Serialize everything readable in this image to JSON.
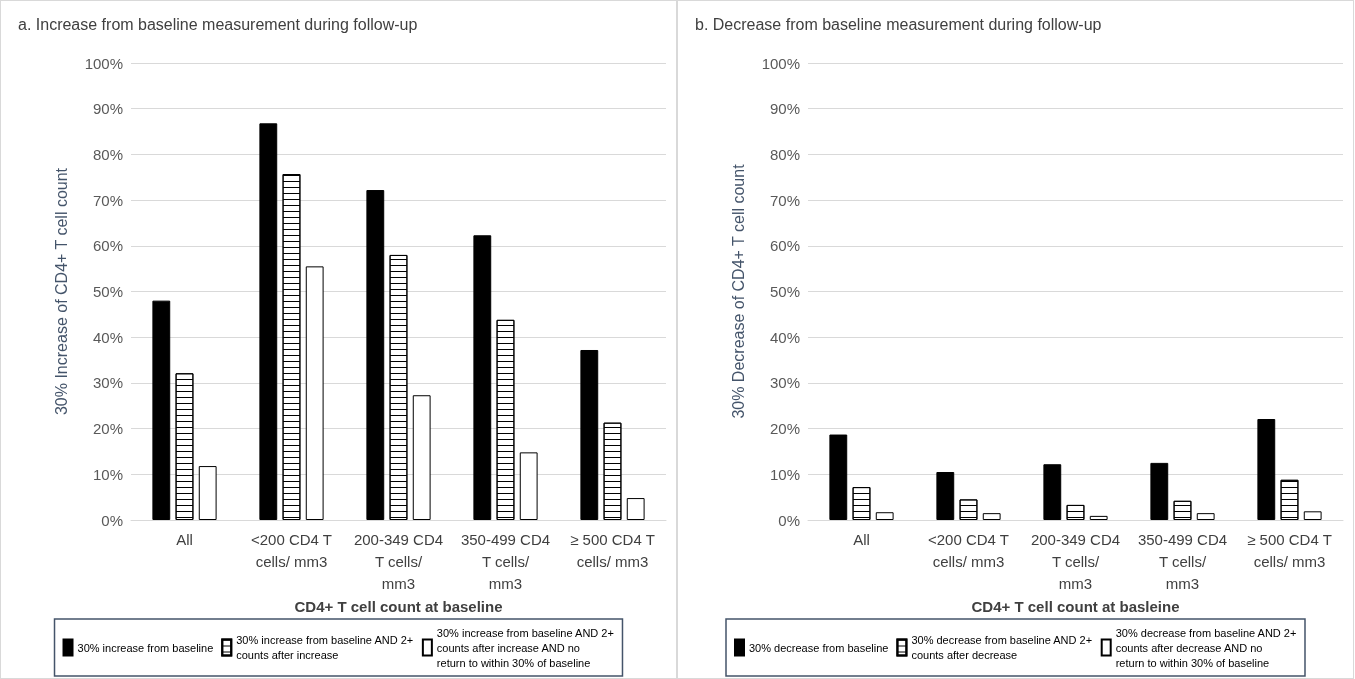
{
  "chart_data": [
    {
      "type": "bar",
      "title": "a. Increase from baseline measurement during follow-up",
      "xlabel": "CD4+ T cell count at baseline",
      "ylabel": "30% Increase of CD4+ T cell count",
      "categories": [
        "All",
        "<200 CD4 T cells/ mm3",
        "200-349 CD4 T cells/ mm3",
        "350-499 CD4 T cells/ mm3",
        "≥ 500 CD4 T cells/ mm3"
      ],
      "series": [
        {
          "name": "30% increase from baseline",
          "color": "#000000",
          "values": [
            48,
            86.8,
            72.2,
            62.3,
            37.2
          ]
        },
        {
          "name": "30% increase from baseline AND 2+ counts after increase",
          "color": "#ffffff",
          "values": [
            32.1,
            75.7,
            58,
            43.8,
            21.3
          ]
        },
        {
          "name": "30% increase from baseline AND 2+ counts after increase AND no return to within 30% of baseline",
          "color": "#ffffff",
          "values": [
            11.8,
            55.5,
            27.3,
            14.8,
            4.8
          ]
        }
      ],
      "ylim": [
        0,
        100
      ],
      "yticks": [
        {
          "value": 0,
          "label": "0%"
        },
        {
          "value": 10,
          "label": "10%"
        },
        {
          "value": 20,
          "label": "20%"
        },
        {
          "value": 30,
          "label": "30%"
        },
        {
          "value": 40,
          "label": "40%"
        },
        {
          "value": 50,
          "label": "50%"
        },
        {
          "value": 60,
          "label": "60%"
        },
        {
          "value": 70,
          "label": "70%"
        },
        {
          "value": 80,
          "label": "80%"
        },
        {
          "value": 90,
          "label": "90%"
        },
        {
          "value": 100,
          "label": "100%"
        }
      ],
      "grid": "y",
      "legend": "bottom"
    },
    {
      "type": "bar",
      "title": "b. Decrease from baseline measurement during follow-up",
      "xlabel": "CD4+ T cell count at basleine",
      "ylabel": "30% Decrease of CD4+ T cell count",
      "categories": [
        "All",
        "<200 CD4 T cells/ mm3",
        "200-349 CD4 T cells/ mm3",
        "350-499 CD4 T cells/ mm3",
        "≥ 500 CD4 T cells/ mm3"
      ],
      "series": [
        {
          "name": "30% decrease from baseline",
          "color": "#000000",
          "values": [
            18.7,
            10.5,
            12.2,
            12.5,
            22.1
          ]
        },
        {
          "name": "30% decrease from baseline AND 2+ counts after decrease",
          "color": "#ffffff",
          "values": [
            7.2,
            4.5,
            3.3,
            4.2,
            8.8
          ]
        },
        {
          "name": "30% decrease from baseline AND 2+ counts after decrease AND no return to within 30% of baseline",
          "color": "#ffffff",
          "values": [
            1.7,
            1.5,
            0.9,
            1.5,
            1.9
          ]
        }
      ],
      "ylim": [
        0,
        100
      ],
      "yticks": [
        {
          "value": 0,
          "label": "0%"
        },
        {
          "value": 10,
          "label": "10%"
        },
        {
          "value": 20,
          "label": "20%"
        },
        {
          "value": 30,
          "label": "30%"
        },
        {
          "value": 40,
          "label": "40%"
        },
        {
          "value": 50,
          "label": "50%"
        },
        {
          "value": 60,
          "label": "60%"
        },
        {
          "value": 70,
          "label": "70%"
        },
        {
          "value": 80,
          "label": "80%"
        },
        {
          "value": 90,
          "label": "90%"
        },
        {
          "value": 100,
          "label": "100%"
        }
      ],
      "grid": "y",
      "legend": "bottom"
    }
  ]
}
